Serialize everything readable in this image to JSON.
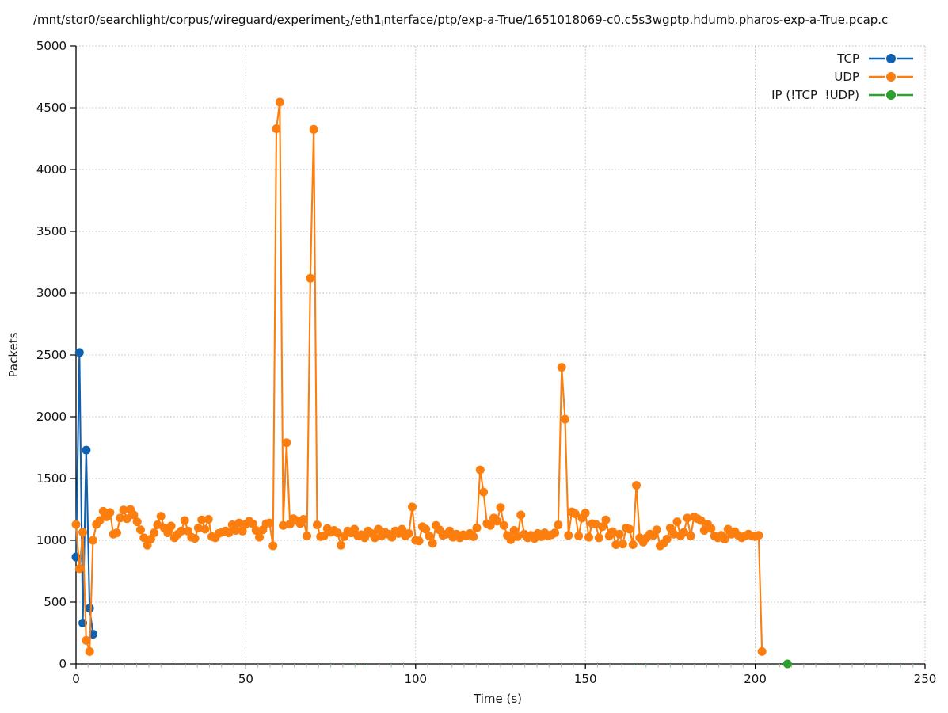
{
  "figure": {
    "title_plain": "/mnt/stor0/searchlight/corpus/wireguard/experiment2/eth1interface/ptp/exp-a-True/1651018069-c0.c5s3wgptp.hdumb.pharos-exp-a-True.pcap.c",
    "title_runs": [
      {
        "t": "/mnt/stor0/searchlight/corpus/wireguard/experiment"
      },
      {
        "t": "2",
        "sub": true
      },
      {
        "t": "/eth1"
      },
      {
        "t": "i",
        "sub": true
      },
      {
        "t": "nterface/ptp/exp-a-True/1651018069-c0.c5s3wgptp.hdumb.pharos-exp-a-True.pcap.c"
      }
    ]
  },
  "colors": {
    "tcp": "#1062b1",
    "udp": "#fb7e0e",
    "ip_other": "#2ca02c",
    "grid": "#bbbbbb",
    "spine": "#000000",
    "minor_tick": "#95c995",
    "text": "#111111",
    "background": "#ffffff"
  },
  "chart_data": {
    "type": "line",
    "title": "/mnt/stor0/searchlight/corpus/wireguard/experiment2/eth1interface/ptp/exp-a-True/1651018069-c0.c5s3wgptp.hdumb.pharos-exp-a-True.pcap.c",
    "xlabel": "Time (s)",
    "ylabel": "Packets",
    "xlim": [
      0,
      250
    ],
    "ylim": [
      0,
      5000
    ],
    "xticks": [
      0,
      50,
      100,
      150,
      200,
      250
    ],
    "yticks": [
      0,
      500,
      1000,
      1500,
      2000,
      2500,
      3000,
      3500,
      4000,
      4500,
      5000
    ],
    "grid": true,
    "grid_style": "dotted",
    "legend_position": "upper right",
    "legend_marker": "line-dot-line",
    "series": [
      {
        "name": "TCP",
        "key": "tcp",
        "color": "#1062b1",
        "marker": "circle",
        "points": [
          [
            0,
            865
          ],
          [
            1,
            2520
          ],
          [
            2,
            330
          ],
          [
            3,
            1730
          ],
          [
            4,
            450
          ],
          [
            5,
            240
          ]
        ]
      },
      {
        "name": "UDP",
        "key": "udp",
        "color": "#fb7e0e",
        "marker": "circle",
        "x0": 0,
        "dx": 1,
        "values": [
          1128,
          770,
          1065,
          190,
          100,
          1000,
          1128,
          1160,
          1235,
          1190,
          1225,
          1050,
          1060,
          1180,
          1245,
          1175,
          1250,
          1205,
          1150,
          1085,
          1020,
          960,
          1010,
          1060,
          1125,
          1195,
          1100,
          1060,
          1115,
          1020,
          1050,
          1075,
          1160,
          1075,
          1025,
          1015,
          1100,
          1165,
          1090,
          1170,
          1030,
          1020,
          1055,
          1065,
          1075,
          1060,
          1125,
          1080,
          1140,
          1075,
          1130,
          1155,
          1135,
          1080,
          1025,
          1085,
          1135,
          1140,
          955,
          4330,
          4545,
          1120,
          1790,
          1130,
          1175,
          1160,
          1135,
          1170,
          1035,
          3120,
          4325,
          1125,
          1030,
          1035,
          1095,
          1065,
          1080,
          1060,
          960,
          1030,
          1075,
          1060,
          1090,
          1035,
          1045,
          1020,
          1075,
          1055,
          1020,
          1090,
          1035,
          1065,
          1050,
          1025,
          1075,
          1055,
          1090,
          1035,
          1055,
          1270,
          1000,
          995,
          1110,
          1090,
          1035,
          975,
          1120,
          1085,
          1040,
          1050,
          1075,
          1025,
          1050,
          1020,
          1045,
          1035,
          1055,
          1030,
          1100,
          1570,
          1390,
          1135,
          1120,
          1180,
          1155,
          1265,
          1120,
          1040,
          1005,
          1080,
          1030,
          1205,
          1050,
          1020,
          1040,
          1015,
          1055,
          1030,
          1060,
          1035,
          1045,
          1060,
          1125,
          2400,
          1980,
          1040,
          1230,
          1215,
          1035,
          1180,
          1220,
          1025,
          1135,
          1130,
          1020,
          1110,
          1165,
          1035,
          1070,
          965,
          1050,
          970,
          1100,
          1090,
          965,
          1445,
          1020,
          985,
          1020,
          1050,
          1040,
          1085,
          955,
          975,
          1010,
          1100,
          1050,
          1150,
          1035,
          1065,
          1180,
          1035,
          1190,
          1175,
          1160,
          1080,
          1130,
          1095,
          1035,
          1020,
          1040,
          1010,
          1090,
          1050,
          1070,
          1040,
          1020,
          1035,
          1050,
          1035,
          1030,
          1040,
          100
        ]
      },
      {
        "name": "IP (!TCP  !UDP)",
        "key": "ip-other",
        "color": "#2ca02c",
        "marker": "circle",
        "points": [
          [
            209.5,
            0
          ]
        ]
      }
    ]
  }
}
